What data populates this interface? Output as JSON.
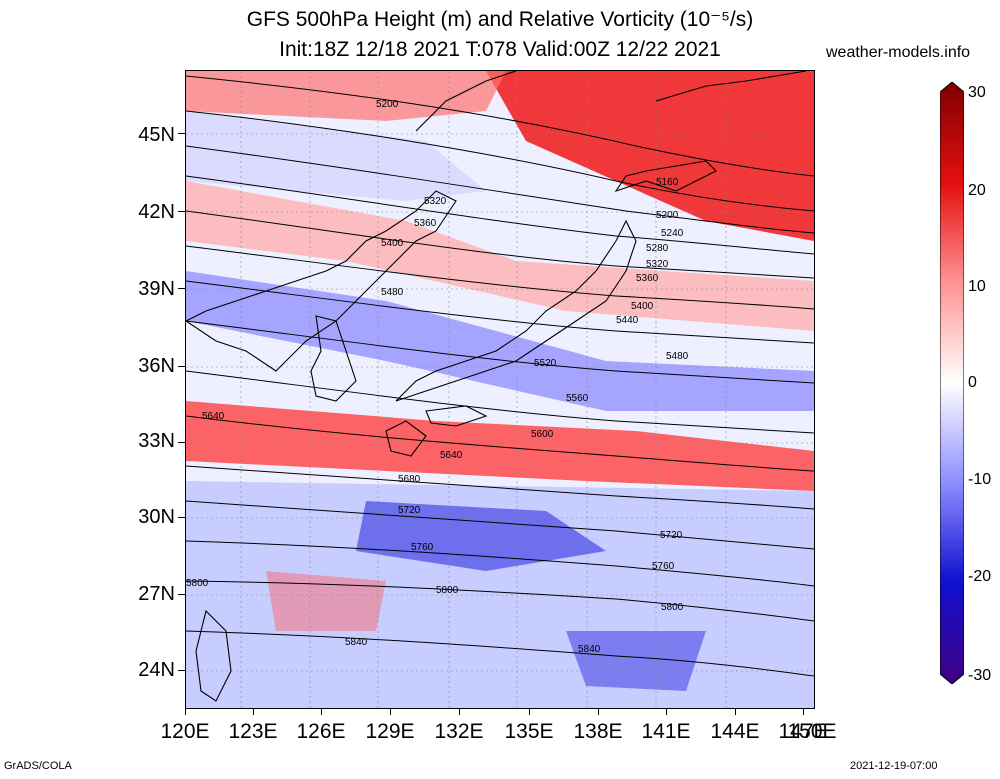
{
  "header": {
    "title_line1": "GFS 500hPa Height (m) and Relative Vorticity (10⁻⁵/s)",
    "title_line2": "Init:18Z 12/18 2021 T:078 Valid:00Z 12/22 2021",
    "site": "weather-models.info"
  },
  "axes": {
    "lat_labels": [
      "45N",
      "42N",
      "39N",
      "36N",
      "33N",
      "30N",
      "27N",
      "24N"
    ],
    "lon_labels": [
      "120E",
      "123E",
      "126E",
      "129E",
      "132E",
      "135E",
      "138E",
      "141E",
      "144E",
      "147E",
      "150E"
    ]
  },
  "colorbar": {
    "labels": [
      "30",
      "20",
      "10",
      "0",
      "-10",
      "-20",
      "-30"
    ],
    "colors": [
      "#800000",
      "#e41010",
      "#ff9090",
      "#ffffff",
      "#8a8aff",
      "#1010d0",
      "#400080"
    ]
  },
  "contour_labels": [
    "5200",
    "5320",
    "5360",
    "5400",
    "5480",
    "5160",
    "5200",
    "5240",
    "5280",
    "5320",
    "5360",
    "5400",
    "5440",
    "5480",
    "5520",
    "5560",
    "5600",
    "5640",
    "5640",
    "5680",
    "5720",
    "5720",
    "5760",
    "5760",
    "5800",
    "5800",
    "5800",
    "5840",
    "5840"
  ],
  "footer": {
    "left": "GrADS/COLA",
    "right": "2021-12-19-07:00"
  }
}
